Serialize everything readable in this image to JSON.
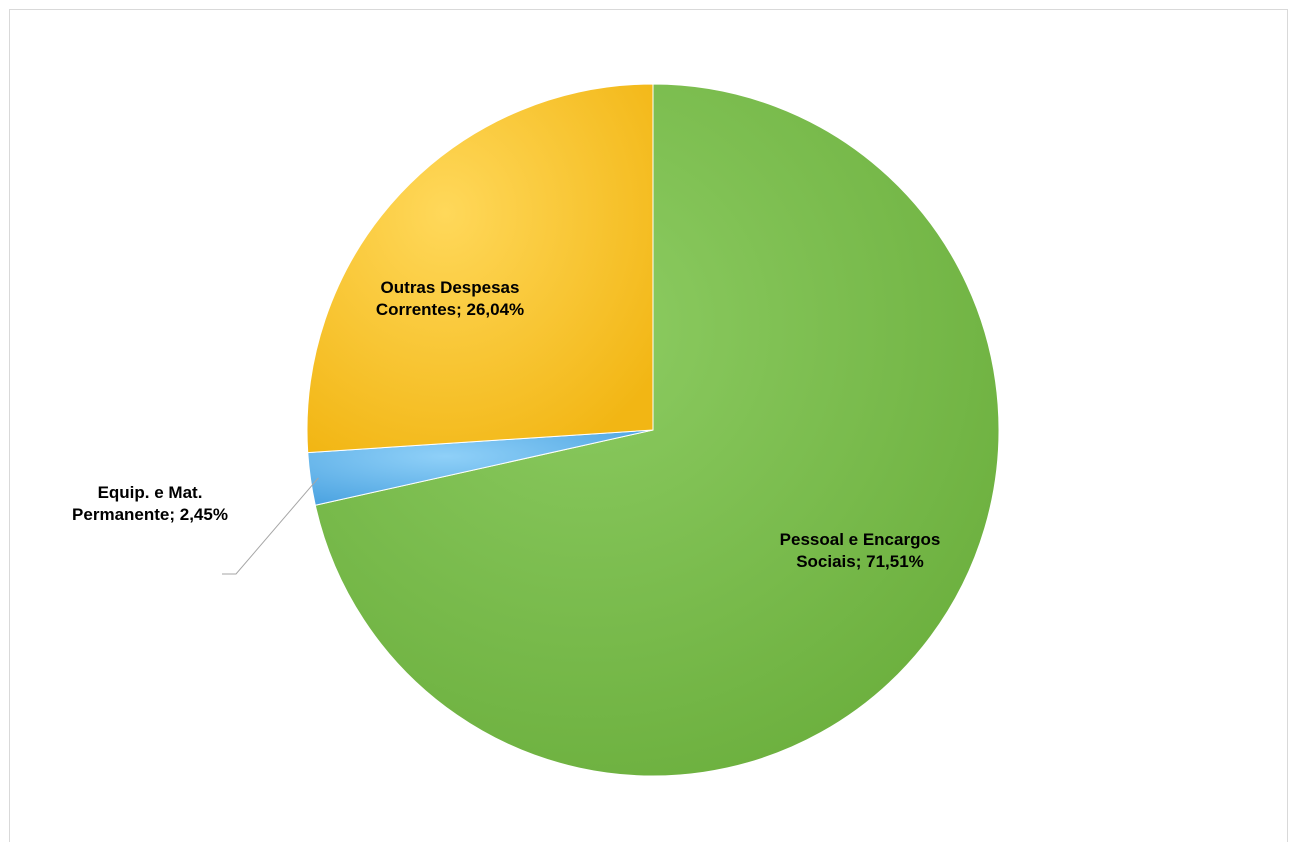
{
  "chart_data": {
    "type": "pie",
    "title": "",
    "slices": [
      {
        "name": "Pessoal e Encargos Sociais",
        "value": 71.51,
        "label_lines": [
          "Pessoal e Encargos",
          "Sociais; 71,51%"
        ],
        "color": "#76b84a"
      },
      {
        "name": "Equip. e Mat. Permanente",
        "value": 2.45,
        "label_lines": [
          "Equip. e Mat.",
          "Permanente; 2,45%"
        ],
        "color": "#5aaeea"
      },
      {
        "name": "Outras Despesas Correntes",
        "value": 26.04,
        "label_lines": [
          "Outras Despesas",
          "Correntes; 26,04%"
        ],
        "color": "#f7c22a"
      }
    ],
    "start_angle": "12 o'clock",
    "direction": "clockwise",
    "legend": "none"
  }
}
